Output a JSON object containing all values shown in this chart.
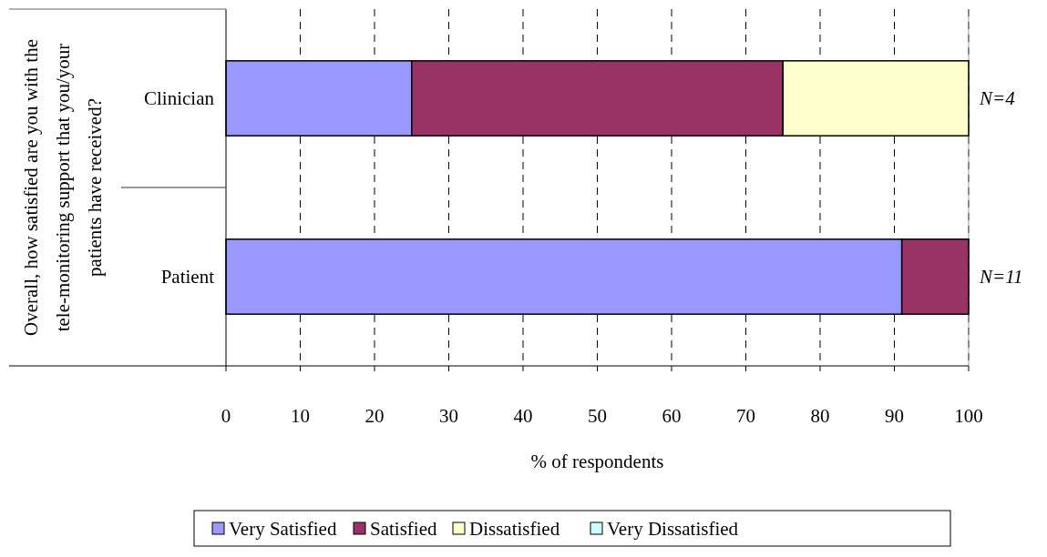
{
  "chart_data": {
    "type": "bar",
    "orientation": "horizontal",
    "stacked": true,
    "ylabel": "Overall, how satisfied are you with the tele-monitoring support that you/your patients have received?",
    "xlabel": "% of respondents",
    "categories": [
      "Clinician",
      "Patient"
    ],
    "series": [
      {
        "name": "Very Satisfied",
        "color": "#9999ff",
        "values": [
          25,
          91
        ]
      },
      {
        "name": "Satisfied",
        "color": "#993366",
        "values": [
          50,
          9
        ]
      },
      {
        "name": "Dissatisfied",
        "color": "#ffffcc",
        "values": [
          25,
          0
        ]
      },
      {
        "name": "Very Dissatisfied",
        "color": "#ccffff",
        "values": [
          0,
          0
        ]
      }
    ],
    "xlim": [
      0,
      100
    ],
    "xticks": [
      0,
      10,
      20,
      30,
      40,
      50,
      60,
      70,
      80,
      90,
      100
    ],
    "grid": "x",
    "legend": "bottom",
    "annotations": [
      {
        "text": "N=4",
        "x": 100,
        "y": "Clinician"
      },
      {
        "text": "N=11",
        "x": 100,
        "y": "Patient"
      }
    ]
  }
}
